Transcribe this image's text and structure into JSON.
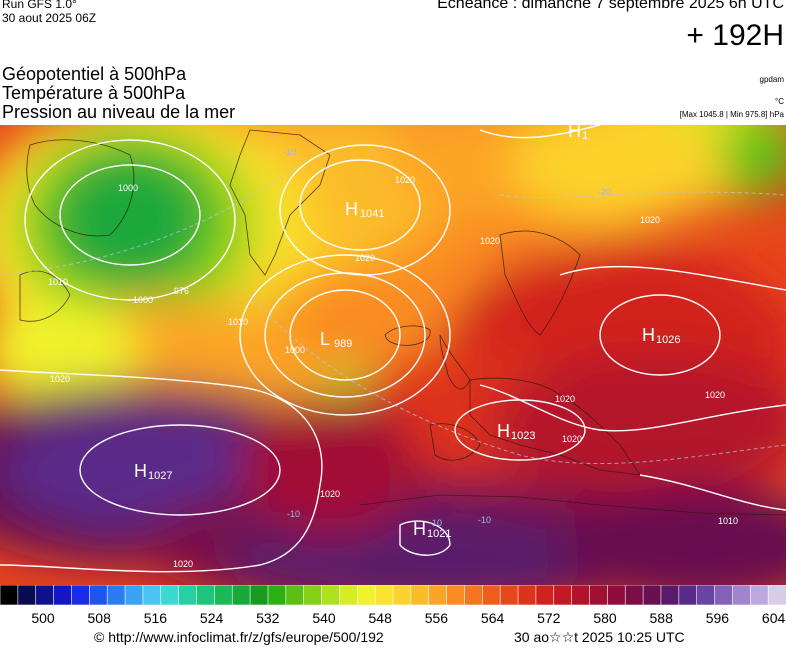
{
  "header": {
    "run": "Run GFS 1.0°",
    "run_date": "30 aout 2025 06Z",
    "echeance": "Echéance : dimanche 7 septembre 2025 6h UTC",
    "horizon": "+ 192H"
  },
  "titles": {
    "line1": "Géopotentiel à 500hPa",
    "line2": "Température à 500hPa",
    "line3": "Pression au niveau de la mer"
  },
  "units": {
    "geopotential": "gpdam",
    "temperature": "°C",
    "pressure": "[Max 1045.8 | Min 975.8] hPa"
  },
  "map_labels": [
    {
      "id": "h-greenland",
      "letter": "H",
      "value": "1041"
    },
    {
      "id": "l-iceland",
      "letter": "L",
      "value": "989"
    },
    {
      "id": "h-azores",
      "letter": "H",
      "value": "1027"
    },
    {
      "id": "h-russia",
      "letter": "H",
      "value": "1026"
    },
    {
      "id": "h-alps",
      "letter": "H",
      "value": "1023"
    },
    {
      "id": "h-africa",
      "letter": "H",
      "value": "1021"
    },
    {
      "id": "h-north",
      "letter": "H",
      "value": "1"
    }
  ],
  "isobar_labels": [
    "1000",
    "1000",
    "1020",
    "1020",
    "1020",
    "1020",
    "1020",
    "1020",
    "1020",
    "1020",
    "1010",
    "1010",
    "1010",
    "1000",
    "976",
    "1020",
    "1020"
  ],
  "temperature_labels": [
    "-10",
    "-20",
    "-10",
    "-10",
    "-10"
  ],
  "colorbar": {
    "ticks": [
      "500",
      "508",
      "516",
      "524",
      "532",
      "540",
      "548",
      "556",
      "564",
      "572",
      "580",
      "588",
      "596",
      "604"
    ],
    "colors": [
      "#000000",
      "#0a0a50",
      "#11118a",
      "#1515c8",
      "#1a2be8",
      "#1f54ee",
      "#2a7cf2",
      "#3aa3f4",
      "#4cc4f2",
      "#3ed8d2",
      "#27d0a0",
      "#1ec47a",
      "#1cb85a",
      "#1aa83a",
      "#1a9a22",
      "#2db012",
      "#5cc014",
      "#86d018",
      "#aee01c",
      "#d4ee22",
      "#f0f22a",
      "#f8e42c",
      "#fcd22c",
      "#fcbc2a",
      "#fca426",
      "#fa8c22",
      "#f6741e",
      "#f05c1c",
      "#e8461c",
      "#de321c",
      "#d2221e",
      "#c41824",
      "#b4122c",
      "#a20e34",
      "#900c3c",
      "#7c0c44",
      "#681050",
      "#5a1a6a",
      "#5a2a8a",
      "#6a44a4",
      "#8462ba",
      "#a084cc",
      "#bca8dc",
      "#d8cce8"
    ]
  },
  "footer": {
    "credit": "© http://www.infoclimat.fr/z/gfs/europe/500/192",
    "generated": "30 ao☆☆t 2025 10:25 UTC"
  }
}
